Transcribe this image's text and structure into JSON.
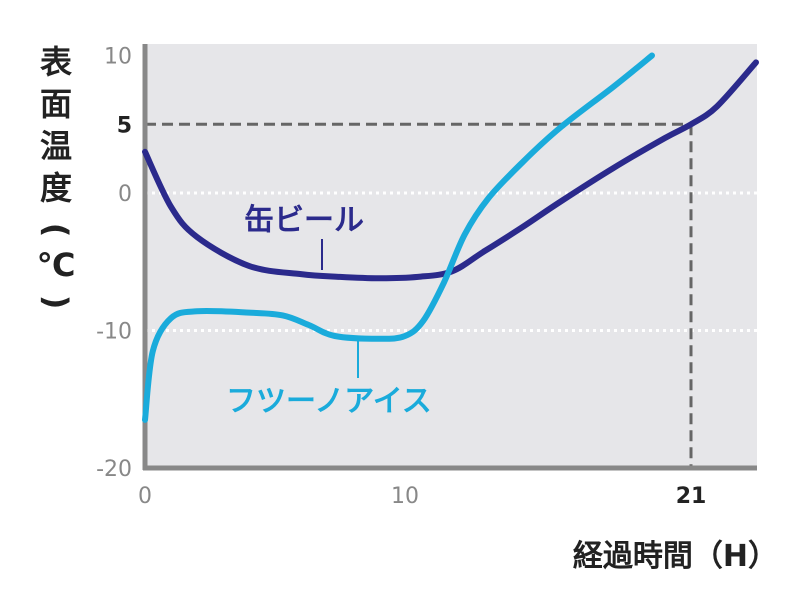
{
  "chart_data": {
    "type": "line",
    "ylabel": "表面温度(℃)",
    "xlabel": "経過時間（H）",
    "xlim": [
      0,
      23.5
    ],
    "ylim": [
      -20,
      10
    ],
    "y_ticks": [
      "10",
      "5",
      "0",
      "-10",
      "-20"
    ],
    "x_ticks": [
      "0",
      "10",
      "21"
    ],
    "gridlines_y": [
      0,
      -10
    ],
    "reference": {
      "x": 21,
      "y": 5
    },
    "series": [
      {
        "name": "缶ビール",
        "color": "#2b2a8c",
        "points": [
          [
            0,
            3
          ],
          [
            1,
            -1
          ],
          [
            2,
            -3.2
          ],
          [
            4,
            -5.3
          ],
          [
            6,
            -5.9
          ],
          [
            7.5,
            -6.1
          ],
          [
            9,
            -6.2
          ],
          [
            10.5,
            -6.1
          ],
          [
            11.8,
            -5.7
          ],
          [
            13,
            -4.3
          ],
          [
            14.5,
            -2.5
          ],
          [
            16,
            -0.6
          ],
          [
            18,
            1.8
          ],
          [
            20,
            4.0
          ],
          [
            21,
            5.0
          ],
          [
            22,
            6.3
          ],
          [
            23.5,
            9.5
          ]
        ]
      },
      {
        "name": "フツーノアイス",
        "color": "#1aabdb",
        "points": [
          [
            0,
            -16.5
          ],
          [
            0.3,
            -11.5
          ],
          [
            1,
            -9.1
          ],
          [
            2,
            -8.6
          ],
          [
            4,
            -8.7
          ],
          [
            5.3,
            -8.9
          ],
          [
            6.3,
            -9.6
          ],
          [
            7.3,
            -10.4
          ],
          [
            9,
            -10.6
          ],
          [
            10,
            -10.4
          ],
          [
            10.7,
            -9.3
          ],
          [
            11.5,
            -6.5
          ],
          [
            12.3,
            -3
          ],
          [
            13.2,
            -0.4
          ],
          [
            14.5,
            2.2
          ],
          [
            16,
            4.8
          ],
          [
            18,
            7.7
          ],
          [
            19.5,
            10
          ]
        ]
      }
    ]
  }
}
